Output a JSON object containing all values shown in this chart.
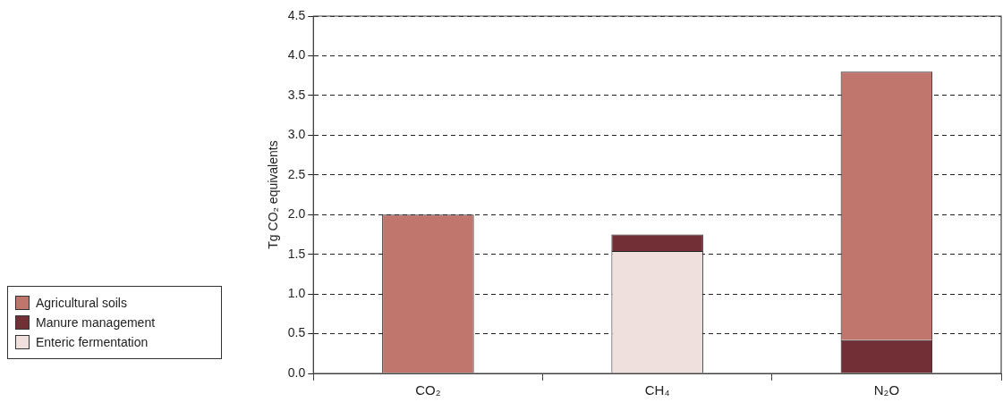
{
  "chart_data": {
    "type": "bar",
    "ylabel": "Tg CO₂ equivalents",
    "categories": [
      "CO₂",
      "CH₄",
      "N₂O"
    ],
    "series": [
      {
        "name": "Enteric fermentation",
        "color": "#efe0dd",
        "values": [
          null,
          1.54,
          null
        ]
      },
      {
        "name": "Manure management",
        "color": "#722f35",
        "values": [
          null,
          0.21,
          0.42
        ]
      },
      {
        "name": "Agricultural soils",
        "color": "#c0756d",
        "values": [
          2.0,
          null,
          3.38
        ]
      }
    ],
    "stacked": true,
    "ylim": [
      0,
      4.5
    ],
    "yticks": [
      {
        "value": 0,
        "label": "0.0"
      },
      {
        "value": 0.5,
        "label": "0.5"
      },
      {
        "value": 1,
        "label": "1.0"
      },
      {
        "value": 1.5,
        "label": "1.5"
      },
      {
        "value": 2,
        "label": "2.0"
      },
      {
        "value": 2.5,
        "label": "2.5"
      },
      {
        "value": 3,
        "label": "3.0"
      },
      {
        "value": 3.5,
        "label": "3.5"
      },
      {
        "value": 4,
        "label": "4.0"
      },
      {
        "value": 4.5,
        "label": "4.5"
      }
    ],
    "grid": "y",
    "legend": "bottom left"
  }
}
